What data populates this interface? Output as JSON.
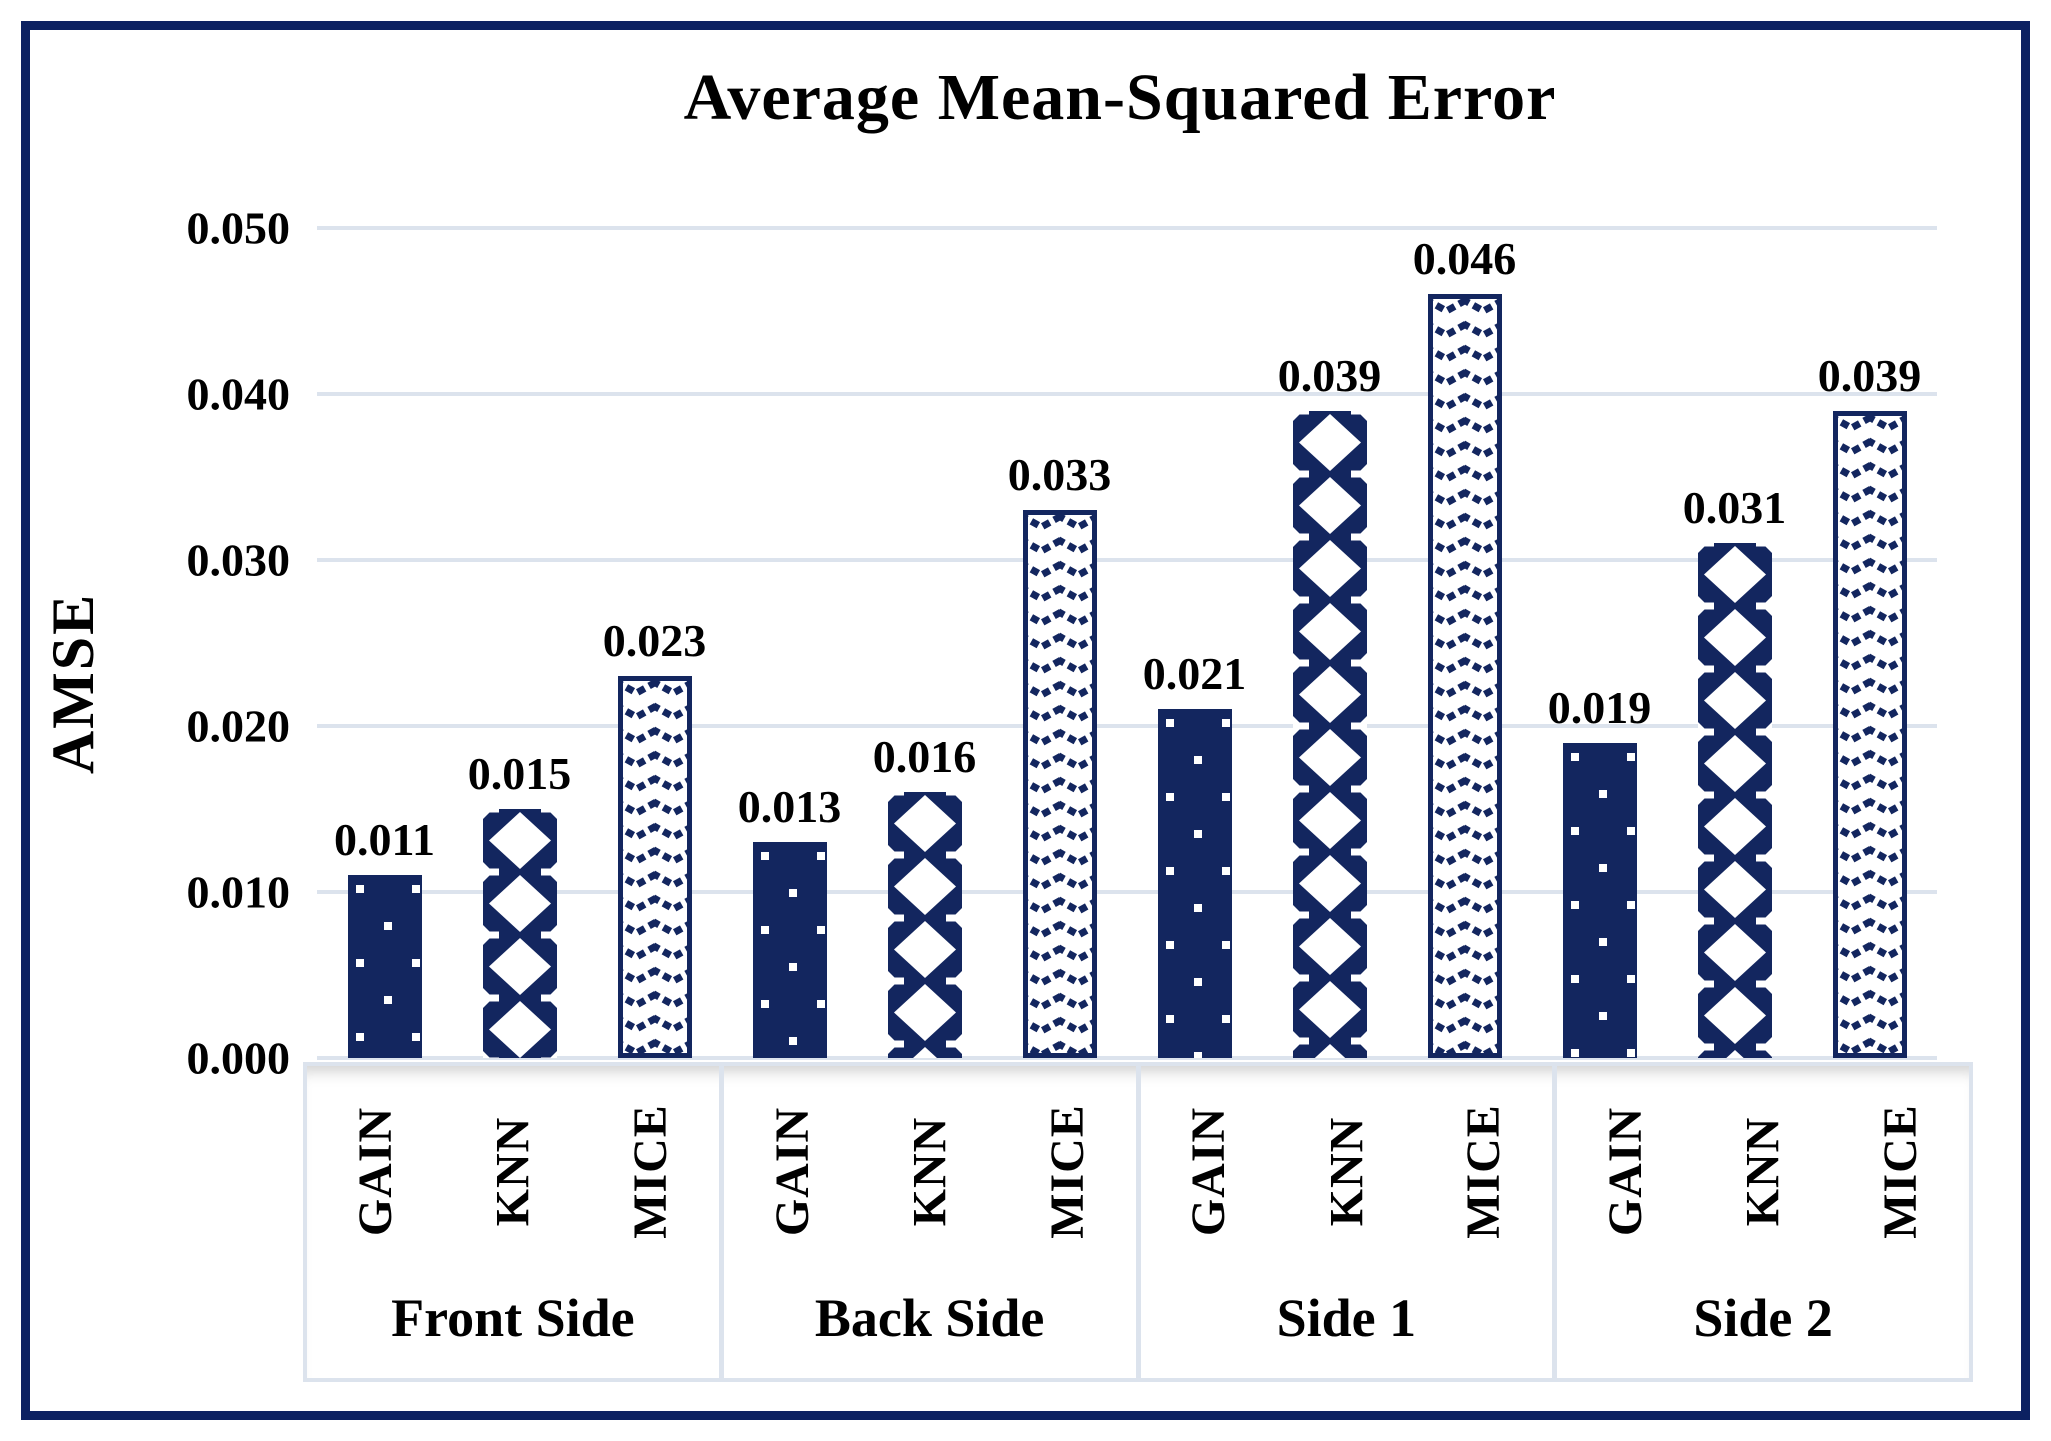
{
  "chart_data": {
    "type": "bar",
    "title": "Average Mean-Squared Error",
    "ylabel": "AMSE",
    "xlabel": "",
    "categories": [
      "Front Side",
      "Back Side",
      "Side 1",
      "Side 2"
    ],
    "series": [
      {
        "name": "GAIN",
        "pattern": "dots",
        "values": [
          0.011,
          0.013,
          0.021,
          0.019
        ]
      },
      {
        "name": "KNN",
        "pattern": "diamonds",
        "values": [
          0.015,
          0.016,
          0.039,
          0.031
        ]
      },
      {
        "name": "MICE",
        "pattern": "chevrons",
        "values": [
          0.023,
          0.033,
          0.046,
          0.039
        ]
      }
    ],
    "ylim": [
      0,
      0.05
    ],
    "ytick_step": 0.01,
    "ytick_labels": [
      "0.000",
      "0.010",
      "0.020",
      "0.030",
      "0.040",
      "0.050"
    ],
    "value_label_decimals": 3,
    "grid": true,
    "legend_position": "none",
    "colors": {
      "navy": "#13265f",
      "frame": "#0c2161",
      "gridline": "#dce3ed",
      "axis_box_border": "#dce3ed",
      "text": "#000000",
      "background": "#ffffff"
    }
  }
}
